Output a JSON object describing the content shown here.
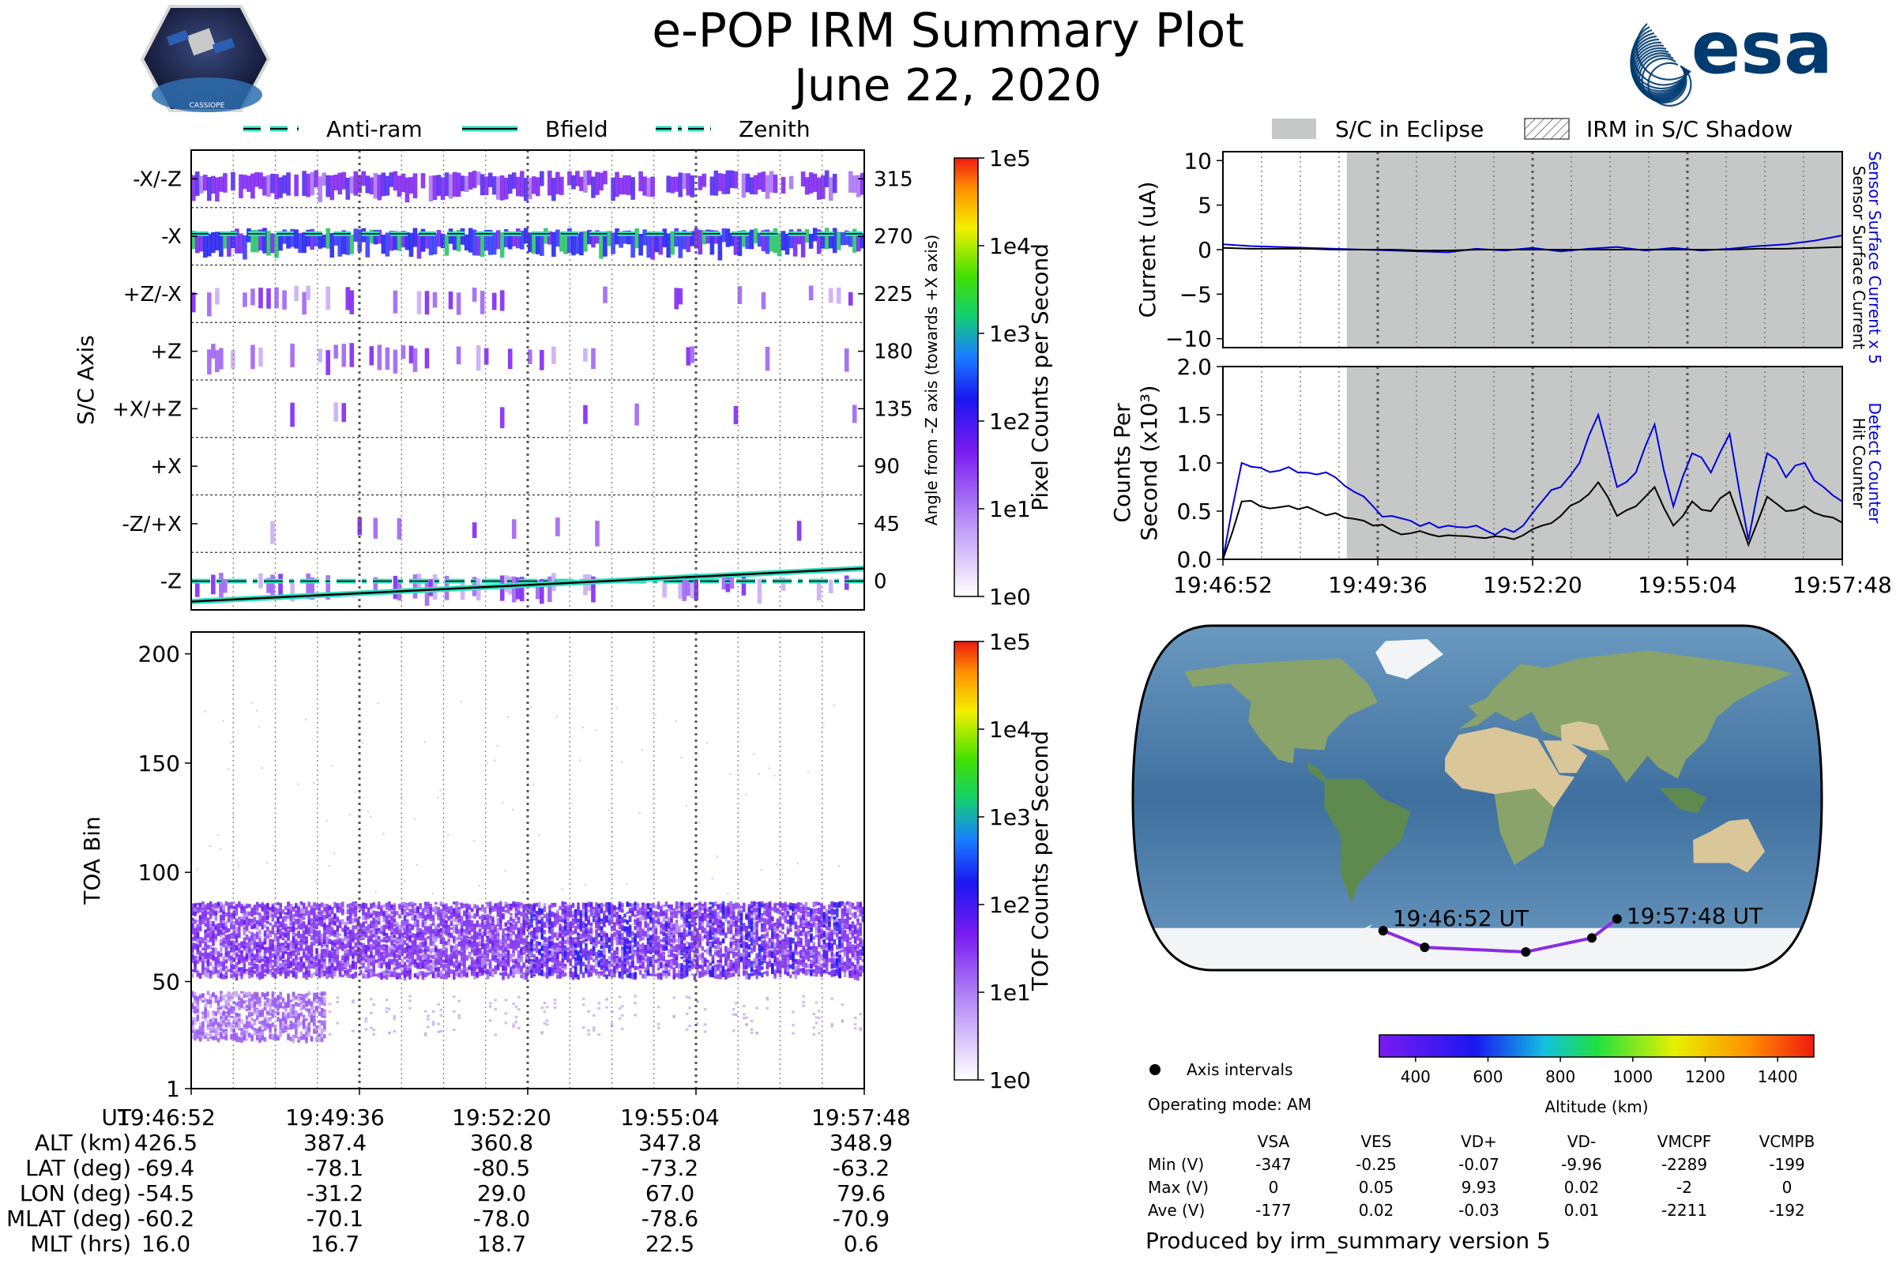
{
  "header": {
    "title": "e-POP IRM Summary Plot",
    "date": "June 22, 2020",
    "mission_badge_text": "CASSIOPE",
    "agency_logo_text": "esa"
  },
  "colors": {
    "anti_ram": "#2fe0c0",
    "bfield": "#000000",
    "zenith": "#2fe0c0",
    "eclipse": "#c6c8c8",
    "sensor_current": "#0000dd",
    "hit_counter": "#000000",
    "track": "#8a2be2",
    "esa_blue": "#003b6f"
  },
  "chart_data": [
    {
      "id": "sc_axis_panel",
      "type": "heatmap",
      "ylabel": "S/C Axis",
      "y_categories": [
        "-X/-Z",
        "-X",
        "+Z/-X",
        "+Z",
        "+X/+Z",
        "+X",
        "-Z/+X",
        "-Z"
      ],
      "right_ticks": [
        "315",
        "270",
        "225",
        "180",
        "135",
        "90",
        "45",
        "0"
      ],
      "right_ylabel": "Angle from -Z axis (towards +X axis)",
      "legend": [
        {
          "label": "Anti-ram",
          "style": "dashed"
        },
        {
          "label": "Bfield",
          "style": "solid"
        },
        {
          "label": "Zenith",
          "style": "dashdot"
        }
      ],
      "colorbar": {
        "label": "Pixel Counts per Second",
        "ticks": [
          "1e0",
          "1e1",
          "1e2",
          "1e3",
          "1e4",
          "1e5"
        ],
        "scale": "log"
      },
      "anti_ram_angle": 272,
      "zenith_angle": 0,
      "bfield_angle": [
        -16,
        10
      ]
    },
    {
      "id": "toa_panel",
      "type": "heatmap",
      "ylabel": "TOA Bin",
      "ylim": [
        1,
        210
      ],
      "yticks": [
        "1",
        "50",
        "100",
        "150",
        "200"
      ],
      "colorbar": {
        "label": "TOF Counts per Second",
        "ticks": [
          "1e0",
          "1e1",
          "1e2",
          "1e3",
          "1e4",
          "1e5"
        ],
        "scale": "log"
      },
      "bands": [
        {
          "center": 70,
          "width": 28
        },
        {
          "center": 35,
          "width": 18
        }
      ]
    },
    {
      "id": "current_panel",
      "type": "line",
      "ylabel": "Current (uA)",
      "ylim": [
        -11,
        11
      ],
      "yticks": [
        "10",
        "5",
        "0",
        "−5",
        "−10"
      ],
      "right_labels": [
        "Sensor Surface Current x 5",
        "Sensor Surface Current"
      ],
      "legend": [
        {
          "label": "S/C in Eclipse",
          "style": "fill"
        },
        {
          "label": "IRM in S/C Shadow",
          "style": "hatch"
        }
      ],
      "eclipse_start_fraction": 0.2,
      "series": [
        {
          "name": "Sensor Surface Current x 5",
          "values": [
            0.6,
            0.4,
            0.3,
            0.2,
            0.1,
            0,
            -0.1,
            -0.2,
            -0.3,
            0.1,
            -0.1,
            0.2,
            -0.2,
            0.1,
            0.3,
            -0.1,
            0.2,
            -0.1,
            0.1,
            0.4,
            0.6,
            1.0,
            1.6
          ]
        },
        {
          "name": "Sensor Surface Current",
          "values": [
            0.2,
            0.1,
            0.1,
            0.1,
            0,
            0,
            0,
            -0.1,
            -0.1,
            0,
            0,
            0,
            0,
            0,
            0,
            0,
            0,
            0,
            0,
            0.1,
            0.1,
            0.2,
            0.3
          ]
        }
      ]
    },
    {
      "id": "counts_panel",
      "type": "line",
      "ylabel": "Counts Per Second (x10³)",
      "ylim": [
        0,
        2.0
      ],
      "yticks": [
        "2.0",
        "1.5",
        "1.0",
        "0.5",
        "0.0"
      ],
      "x_ticks": [
        "19:46:52",
        "19:49:36",
        "19:52:20",
        "19:55:04",
        "19:57:48"
      ],
      "right_labels": [
        "Detect Counter",
        "Hit Counter"
      ],
      "series": [
        {
          "name": "Detect Counter",
          "values": [
            0.0,
            1.0,
            0.95,
            0.92,
            0.9,
            0.88,
            0.85,
            0.7,
            0.55,
            0.45,
            0.4,
            0.38,
            0.35,
            0.33,
            0.3,
            0.32,
            0.35,
            0.6,
            0.75,
            1.0,
            1.5,
            0.75,
            0.9,
            1.4,
            0.55,
            1.1,
            0.9,
            1.3,
            0.2,
            1.1,
            0.85,
            1.0,
            0.75,
            0.6
          ]
        },
        {
          "name": "Hit Counter",
          "values": [
            0.0,
            0.6,
            0.55,
            0.54,
            0.52,
            0.5,
            0.48,
            0.42,
            0.35,
            0.3,
            0.27,
            0.26,
            0.25,
            0.24,
            0.22,
            0.23,
            0.25,
            0.35,
            0.45,
            0.6,
            0.8,
            0.45,
            0.55,
            0.75,
            0.35,
            0.6,
            0.5,
            0.7,
            0.15,
            0.65,
            0.5,
            0.55,
            0.45,
            0.38
          ]
        }
      ]
    },
    {
      "id": "map_panel",
      "type": "scatter",
      "projection": "robinson",
      "track_lon": [
        -54.5,
        -31.2,
        29.0,
        67.0,
        79.6
      ],
      "track_lat": [
        -69.4,
        -78.1,
        -80.5,
        -73.2,
        -63.2
      ],
      "start_label": "19:46:52 UT",
      "end_label": "19:57:48 UT",
      "altitude_colorbar": {
        "label": "Altitude (km)",
        "ticks": [
          "400",
          "600",
          "800",
          "1000",
          "1200",
          "1400"
        ],
        "range": [
          300,
          1500
        ]
      },
      "legend": "Axis intervals"
    }
  ],
  "time_axis": {
    "ticks": [
      "19:46:52",
      "19:49:36",
      "19:52:20",
      "19:55:04",
      "19:57:48"
    ]
  },
  "ephemeris": {
    "ut_label": "UT",
    "rows": [
      {
        "label": "ALT (km)",
        "values": [
          "426.5",
          "387.4",
          "360.8",
          "347.8",
          "348.9"
        ]
      },
      {
        "label": "LAT (deg)",
        "values": [
          "-69.4",
          "-78.1",
          "-80.5",
          "-73.2",
          "-63.2"
        ]
      },
      {
        "label": "LON (deg)",
        "values": [
          "-54.5",
          "-31.2",
          "29.0",
          "67.0",
          "79.6"
        ]
      },
      {
        "label": "MLAT (deg)",
        "values": [
          "-60.2",
          "-70.1",
          "-78.0",
          "-78.6",
          "-70.9"
        ]
      },
      {
        "label": "MLT (hrs)",
        "values": [
          "16.0",
          "16.7",
          "18.7",
          "22.5",
          "0.6"
        ]
      }
    ]
  },
  "voltages": {
    "operating_mode": "Operating mode: AM",
    "columns": [
      "VSA",
      "VES",
      "VD+",
      "VD-",
      "VMCPF",
      "VCMPB"
    ],
    "rows": [
      {
        "label": "Min (V)",
        "values": [
          "-347",
          "-0.25",
          "-0.07",
          "-9.96",
          "-2289",
          "-199"
        ]
      },
      {
        "label": "Max (V)",
        "values": [
          "0",
          "0.05",
          "9.93",
          "0.02",
          "-2",
          "0"
        ]
      },
      {
        "label": "Ave (V)",
        "values": [
          "-177",
          "0.02",
          "-0.03",
          "0.01",
          "-2211",
          "-192"
        ]
      }
    ]
  },
  "footer": {
    "produced_by": "Produced by irm_summary version 5"
  }
}
